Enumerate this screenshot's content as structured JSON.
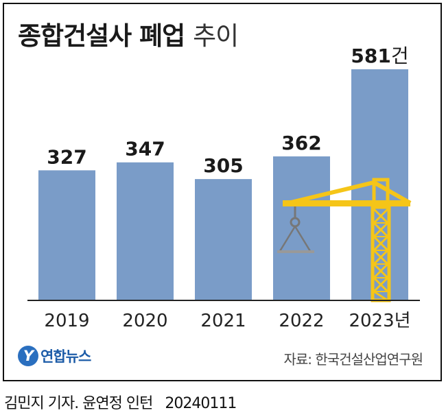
{
  "title_bold": "종합건설사 폐업",
  "title_light": "추이",
  "chart_data": {
    "type": "bar",
    "title": "종합건설사 폐업 추이",
    "categories": [
      "2019",
      "2020",
      "2021",
      "2022",
      "2023년"
    ],
    "values": [
      327,
      347,
      305,
      362,
      581
    ],
    "value_labels": [
      "327",
      "347",
      "305",
      "362",
      "581"
    ],
    "last_value_unit": "건",
    "ylim": [
      0,
      650
    ],
    "grid": false,
    "bar_color": "#7a9cc8",
    "crane_color": "#f5c518"
  },
  "logo": {
    "mark": "Y",
    "name": "연합뉴스",
    "icon": "yonhap-logo-icon"
  },
  "source": "자료: 한국건설산업연구원",
  "credit": {
    "author": "김민지 기자. 윤연정 인턴",
    "date": "20240111"
  }
}
